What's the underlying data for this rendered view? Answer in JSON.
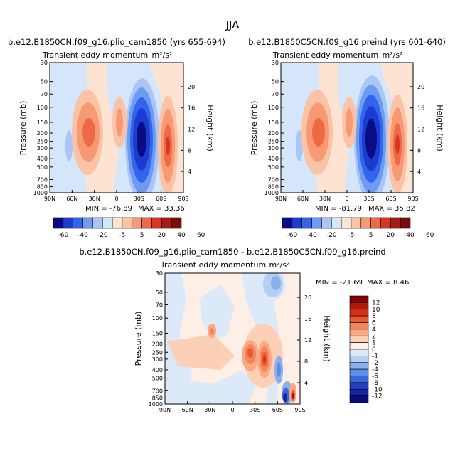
{
  "figure": {
    "title": "JJA"
  },
  "levels_shared": [
    -60,
    -40,
    -20,
    -5,
    5,
    20,
    40,
    60
  ],
  "levels_diff": [
    12,
    10,
    8,
    6,
    4,
    2,
    1,
    0,
    -1,
    -2,
    -4,
    -6,
    -8,
    -10,
    -12
  ],
  "palette_shared": [
    "#0b0b84",
    "#1c3bd0",
    "#3266ea",
    "#6f9af2",
    "#a9c6f6",
    "#d5e6fa",
    "#fde4d2",
    "#fbc3a5",
    "#f79a74",
    "#ee6a47",
    "#d8371f",
    "#a61c12",
    "#7a0b0b"
  ],
  "palette_diff": [
    "#8b0000",
    "#b01a0d",
    "#d4311a",
    "#ea5a32",
    "#f4855b",
    "#f9aa84",
    "#fcd0b6",
    "#fdefe5",
    "#dbe9f9",
    "#b4cef4",
    "#89afee",
    "#5d8ee6",
    "#3b68d9",
    "#223fc4",
    "#1524a8",
    "#0a0a7a"
  ],
  "panels": [
    {
      "title": "b.e12.B1850CN.f09_g16.plio_cam1850 (yrs 655-694)",
      "center_title": "Transient eddy momentum",
      "units": "m²/s²",
      "min_label": "MIN = -76.89",
      "max_label": "MAX = 33.36"
    },
    {
      "title": "b.e12.B1850C5CN.f09_g16.preind (yrs 601-640)",
      "center_title": "Transient eddy momentum",
      "units": "m²/s²",
      "min_label": "MIN = -81.79",
      "max_label": "MAX = 35.82"
    },
    {
      "title": "b.e12.B1850CN.f09_g16.plio_cam1850 - b.e12.B1850C5CN.f09_g16.preind",
      "center_title": "Transient eddy momentum",
      "units": "m²/s²",
      "min_label": "MIN = -21.69",
      "max_label": "MAX =    8.46"
    }
  ],
  "chart_data": [
    {
      "type": "heatmap",
      "title": "b.e12.B1850CN.f09_g16.plio_cam1850 (yrs 655-694)",
      "subtitle": "Transient eddy momentum",
      "units": "m²/s²",
      "xlabel": "",
      "ylabel": "Pressure (mb)",
      "ylabel_right": "Height (km)",
      "x_ticks": [
        "90N",
        "60N",
        "30N",
        "0",
        "30S",
        "60S",
        "90S"
      ],
      "y_ticks": [
        30,
        50,
        70,
        100,
        150,
        200,
        250,
        300,
        400,
        500,
        700,
        850,
        1000
      ],
      "y_right_ticks": [
        4,
        8,
        12,
        16,
        20
      ],
      "ylim": [
        1000,
        30
      ],
      "y_scale": "log",
      "min": -76.89,
      "max": 33.36,
      "features": [
        {
          "lat": 38,
          "p": 200,
          "value": 30
        },
        {
          "lat": 15,
          "p": 170,
          "value": 12
        },
        {
          "lat": -32,
          "p": 250,
          "value": -76.89
        },
        {
          "lat": -62,
          "p": 260,
          "value": 33.36
        },
        {
          "lat": 67,
          "p": 300,
          "value": -8
        }
      ]
    },
    {
      "type": "heatmap",
      "title": "b.e12.B1850C5CN.f09_g16.preind (yrs 601-640)",
      "subtitle": "Transient eddy momentum",
      "units": "m²/s²",
      "xlabel": "",
      "ylabel": "Pressure (mb)",
      "ylabel_right": "Height (km)",
      "x_ticks": [
        "90N",
        "60N",
        "30N",
        "0",
        "30S",
        "60S",
        "90S"
      ],
      "y_ticks": [
        30,
        50,
        70,
        100,
        150,
        200,
        250,
        300,
        400,
        500,
        700,
        850,
        1000
      ],
      "y_right_ticks": [
        4,
        8,
        12,
        16,
        20
      ],
      "ylim": [
        1000,
        30
      ],
      "y_scale": "log",
      "min": -81.79,
      "max": 35.82,
      "features": [
        {
          "lat": 38,
          "p": 200,
          "value": 32
        },
        {
          "lat": 15,
          "p": 170,
          "value": 13
        },
        {
          "lat": -31,
          "p": 240,
          "value": -81.79
        },
        {
          "lat": -62,
          "p": 250,
          "value": 35.82
        },
        {
          "lat": 67,
          "p": 300,
          "value": -8
        }
      ]
    },
    {
      "type": "heatmap",
      "title": "b.e12.B1850CN.f09_g16.plio_cam1850 - b.e12.B1850C5CN.f09_g16.preind",
      "subtitle": "Transient eddy momentum",
      "units": "m²/s²",
      "xlabel": "",
      "ylabel": "Pressure (mb)",
      "ylabel_right": "Height (km)",
      "x_ticks": [
        "90N",
        "60N",
        "30N",
        "0",
        "30S",
        "60S",
        "90S"
      ],
      "y_ticks": [
        30,
        50,
        70,
        100,
        150,
        200,
        250,
        300,
        400,
        500,
        700,
        850,
        1000
      ],
      "y_right_ticks": [
        4,
        8,
        12,
        16,
        20
      ],
      "ylim": [
        1000,
        30
      ],
      "y_scale": "log",
      "min": -21.69,
      "max": 8.46,
      "features": [
        {
          "lat": -45,
          "p": 300,
          "value": 8.46
        },
        {
          "lat": -22,
          "p": 260,
          "value": 6
        },
        {
          "lat": 26,
          "p": 150,
          "value": 2
        },
        {
          "lat": -36,
          "p": 55,
          "value": -4
        },
        {
          "lat": -55,
          "p": 280,
          "value": -6
        },
        {
          "lat": 60,
          "p": 300,
          "value": -2
        },
        {
          "lat": -73,
          "p": 900,
          "value": -21.69
        },
        {
          "lat": -85,
          "p": 850,
          "value": 8
        }
      ]
    }
  ]
}
